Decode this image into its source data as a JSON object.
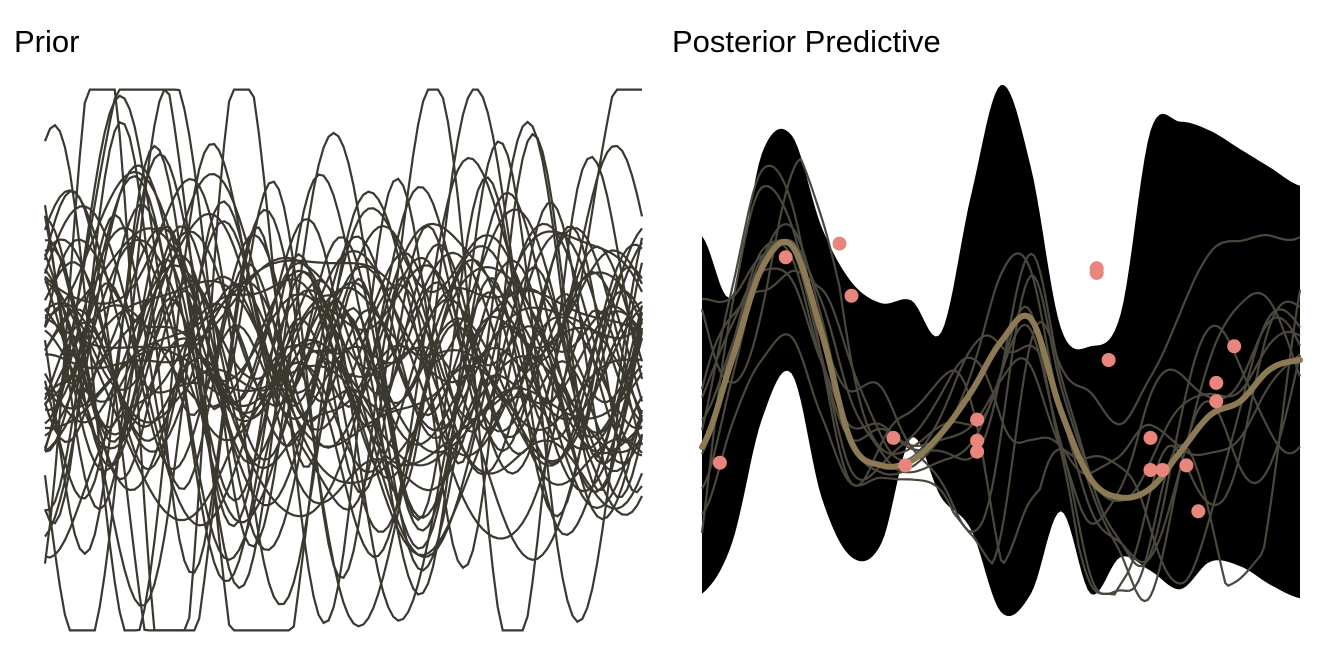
{
  "chart_data": [
    {
      "type": "line",
      "title": "Prior",
      "xlabel": "",
      "ylabel": "",
      "xlim": [
        0,
        1
      ],
      "ylim": [
        -3,
        3
      ],
      "axes_visible": false,
      "grid": false,
      "legend": "none",
      "series_count": 50,
      "line_color": "#3a382f",
      "description_of_marks": "50 smooth random sample functions drawn from a Gaussian-process prior"
    },
    {
      "type": "area",
      "title": "Posterior Predictive",
      "xlabel": "",
      "ylabel": "",
      "xlim": [
        0,
        1
      ],
      "ylim": [
        -3,
        3
      ],
      "axes_visible": false,
      "grid": false,
      "legend": "none",
      "band_color": "#000000",
      "sample_color": "#4a473c",
      "mean_color": "#8c7a55",
      "point_color": "#e8867d",
      "x": [
        0,
        0.05,
        0.1,
        0.15,
        0.2,
        0.25,
        0.3,
        0.35,
        0.4,
        0.45,
        0.5,
        0.55,
        0.6,
        0.65,
        0.7,
        0.75,
        0.8,
        0.85,
        0.9,
        0.95,
        1.0
      ],
      "series": [
        {
          "role": "band-upper",
          "values": [
            1.35,
            0.7,
            2.25,
            2.45,
            1.45,
            0.85,
            0.62,
            0.65,
            0.3,
            1.8,
            3.0,
            2.1,
            0.35,
            0.15,
            0.5,
            2.5,
            2.6,
            2.5,
            2.3,
            2.1,
            1.9
          ]
        },
        {
          "role": "band-lower",
          "values": [
            -2.55,
            -2.0,
            -0.65,
            -0.15,
            -1.5,
            -2.15,
            -2.0,
            -0.85,
            -1.5,
            -1.85,
            -2.75,
            -2.55,
            -1.65,
            -2.55,
            -2.15,
            -2.3,
            -2.5,
            -2.2,
            -2.25,
            -2.45,
            -2.6
          ]
        },
        {
          "role": "mean",
          "values": [
            -0.95,
            0.0,
            1.0,
            1.25,
            0.3,
            -0.9,
            -1.15,
            -1.1,
            -0.8,
            -0.35,
            0.2,
            0.45,
            -0.55,
            -1.3,
            -1.5,
            -1.4,
            -1.0,
            -0.6,
            -0.45,
            -0.1,
            0.0
          ]
        }
      ],
      "points": [
        {
          "x": 0.03,
          "y": -1.12
        },
        {
          "x": 0.14,
          "y": 1.12
        },
        {
          "x": 0.23,
          "y": 1.27
        },
        {
          "x": 0.25,
          "y": 0.7
        },
        {
          "x": 0.32,
          "y": -0.85
        },
        {
          "x": 0.34,
          "y": -1.15
        },
        {
          "x": 0.46,
          "y": -0.65
        },
        {
          "x": 0.46,
          "y": -0.88
        },
        {
          "x": 0.46,
          "y": -1.0
        },
        {
          "x": 0.66,
          "y": 0.95
        },
        {
          "x": 0.66,
          "y": 1.0
        },
        {
          "x": 0.68,
          "y": 0.0
        },
        {
          "x": 0.75,
          "y": -0.85
        },
        {
          "x": 0.75,
          "y": -1.2
        },
        {
          "x": 0.77,
          "y": -1.2
        },
        {
          "x": 0.81,
          "y": -1.15
        },
        {
          "x": 0.83,
          "y": -1.65
        },
        {
          "x": 0.86,
          "y": -0.45
        },
        {
          "x": 0.86,
          "y": -0.25
        },
        {
          "x": 0.89,
          "y": 0.15
        }
      ]
    }
  ]
}
